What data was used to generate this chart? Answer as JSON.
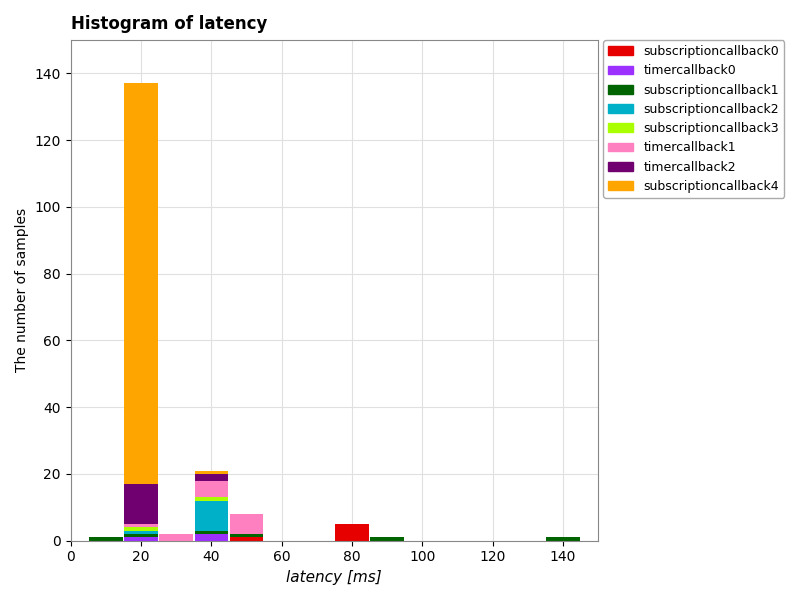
{
  "title": "Histogram of latency",
  "xlabel": "latency [ms]",
  "ylabel": "The number of samples",
  "series": [
    {
      "name": "subscriptioncallback0",
      "color": "#e60000"
    },
    {
      "name": "timercallback0",
      "color": "#9b30ff"
    },
    {
      "name": "subscriptioncallback1",
      "color": "#006400"
    },
    {
      "name": "subscriptioncallback2",
      "color": "#00b0c8"
    },
    {
      "name": "subscriptioncallback3",
      "color": "#aaff00"
    },
    {
      "name": "timercallback1",
      "color": "#ff80c0"
    },
    {
      "name": "timercallback2",
      "color": "#700070"
    },
    {
      "name": "subscriptioncallback4",
      "color": "#ffa500"
    }
  ],
  "xlim": [
    0,
    150
  ],
  "ylim": [
    0,
    150
  ],
  "figsize": [
    8.0,
    6.0
  ],
  "dpi": 100,
  "bg_color": "#ffffff",
  "grid_color": "#e0e0e0",
  "bin_centers": [
    10,
    20,
    30,
    40,
    50,
    60,
    70,
    80,
    90,
    100,
    110,
    120,
    130,
    140
  ],
  "bin_width": 9.5,
  "series_data": {
    "subscriptioncallback0": [
      0,
      0,
      0,
      0,
      1,
      0,
      0,
      5,
      0,
      0,
      0,
      0,
      0,
      0
    ],
    "timercallback0": [
      0,
      1,
      0,
      2,
      0,
      0,
      0,
      0,
      0,
      0,
      0,
      0,
      0,
      0
    ],
    "subscriptioncallback1": [
      1,
      1,
      0,
      1,
      1,
      0,
      0,
      0,
      1,
      0,
      0,
      0,
      0,
      1
    ],
    "subscriptioncallback2": [
      0,
      1,
      0,
      9,
      0,
      0,
      0,
      0,
      0,
      0,
      0,
      0,
      0,
      0
    ],
    "subscriptioncallback3": [
      0,
      1,
      0,
      1,
      0,
      0,
      0,
      0,
      0,
      0,
      0,
      0,
      0,
      0
    ],
    "timercallback1": [
      0,
      1,
      2,
      5,
      6,
      0,
      0,
      0,
      0,
      0,
      0,
      0,
      0,
      0
    ],
    "timercallback2": [
      0,
      12,
      0,
      2,
      0,
      0,
      0,
      0,
      0,
      0,
      0,
      0,
      0,
      0
    ],
    "subscriptioncallback4": [
      0,
      120,
      0,
      1,
      0,
      0,
      0,
      0,
      0,
      0,
      0,
      0,
      0,
      0
    ]
  },
  "xticks": [
    0,
    20,
    40,
    60,
    80,
    100,
    120,
    140
  ],
  "yticks": [
    0,
    20,
    40,
    60,
    80,
    100,
    120,
    140
  ]
}
